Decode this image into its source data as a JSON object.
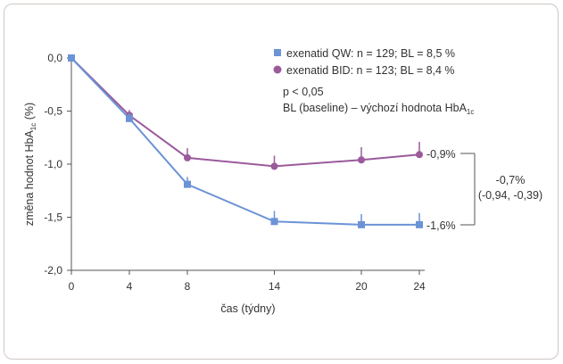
{
  "chart_data": {
    "type": "line",
    "xlabel": "čas (týdny)",
    "ylabel_main": "změna hodnot HbA",
    "ylabel_sub": "1c",
    "ylabel_unit": " (%)",
    "x": [
      0,
      4,
      8,
      14,
      20,
      24
    ],
    "ylim": [
      -2.0,
      0.0
    ],
    "yticks": [
      "0,0",
      "-0,5",
      "-1,0",
      "-1,5",
      "-2,0"
    ],
    "ytick_values": [
      0.0,
      -0.5,
      -1.0,
      -1.5,
      -2.0
    ],
    "xticks": [
      "0",
      "4",
      "8",
      "14",
      "20",
      "24"
    ],
    "grid": false,
    "series": [
      {
        "name": "exenatid QW: n = 129; BL = 8,5 %",
        "color": "#6b93d6",
        "marker": "square",
        "values": [
          0.0,
          -0.57,
          -1.19,
          -1.54,
          -1.57,
          -1.57
        ],
        "error_upper": [
          0.0,
          0.05,
          0.07,
          0.1,
          0.1,
          0.11
        ]
      },
      {
        "name": "exenatid BID: n = 123; BL = 8,4 %",
        "color": "#9b5a9b",
        "marker": "circle",
        "values": [
          0.0,
          -0.54,
          -0.94,
          -1.02,
          -0.96,
          -0.91
        ],
        "error_upper": [
          0.0,
          0.05,
          0.09,
          0.1,
          0.12,
          0.12
        ]
      }
    ],
    "legend_placement": "top-right",
    "annotations": {
      "p_value": "p < 0,05",
      "baseline_note_main": "BL (baseline) – výchozí hodnota HbA",
      "baseline_note_sub": "1c",
      "end_label_bid": "-0,9%",
      "end_label_qw": "-1,6%",
      "diff_label": "-0,7%",
      "diff_ci": "(-0,94, -0,39)"
    }
  }
}
